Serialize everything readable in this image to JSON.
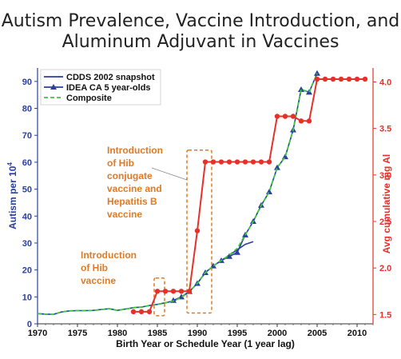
{
  "chart_data": {
    "type": "line",
    "title_line1": "Autism Prevalence, Vaccine Introduction, and",
    "title_line2": "Aluminum Adjuvant in Vaccines",
    "xlabel": "Birth Year or Schedule Year (1 year lag)",
    "ylabel_left": "Autism per 10",
    "ylabel_left_sup": "4",
    "ylabel_right": "Avg cumulative mg Al",
    "xlim": [
      1970,
      2012
    ],
    "ylim_left": [
      0,
      95
    ],
    "ylim_right": [
      1.4,
      4.15
    ],
    "xticks": [
      "1970",
      "1975",
      "1980",
      "1985",
      "1990",
      "1995",
      "2000",
      "2005",
      "2010"
    ],
    "yticks_left": [
      "0",
      "10",
      "20",
      "30",
      "40",
      "50",
      "60",
      "70",
      "80",
      "90"
    ],
    "yticks_right": [
      "1.5",
      "2.0",
      "2.5",
      "3.0",
      "3.5",
      "4.0"
    ],
    "legend_placement": "top-left",
    "series": [
      {
        "name": "CDDS 2002 snapshot",
        "color": "#2a3f9f",
        "axis": "left",
        "x": [
          1970,
          1971,
          1972,
          1973,
          1974,
          1975,
          1976,
          1977,
          1978,
          1979,
          1980,
          1981,
          1982,
          1983,
          1984,
          1985,
          1986,
          1987,
          1988,
          1989,
          1990,
          1991,
          1992,
          1993,
          1994,
          1995,
          1996,
          1997
        ],
        "values": [
          3.8,
          3.6,
          3.5,
          4.4,
          4.8,
          4.9,
          4.9,
          5.0,
          5.3,
          5.6,
          5.0,
          5.5,
          6.0,
          6.2,
          6.8,
          7.2,
          7.8,
          8.5,
          9.8,
          12.0,
          15.0,
          19.0,
          21.5,
          23.5,
          25.5,
          27.5,
          29.5,
          30.5
        ]
      },
      {
        "name": "IDEA CA 5 year-olds",
        "color": "#2a3f9f",
        "axis": "left",
        "x": [
          1987,
          1988,
          1989,
          1990,
          1991,
          1992,
          1993,
          1994,
          1995,
          1996,
          1997,
          1998,
          1999,
          2000,
          2001,
          2002,
          2003,
          2004,
          2005
        ],
        "values": [
          8.7,
          10.0,
          12.0,
          15.0,
          19.0,
          21.5,
          23.5,
          25.0,
          26.5,
          33.0,
          38.0,
          44.0,
          49.0,
          58.0,
          62.0,
          72.0,
          87.0,
          86.0,
          93.0
        ]
      },
      {
        "name": "Composite",
        "color": "#3cc83c",
        "axis": "left",
        "x": [
          1970,
          1971,
          1972,
          1973,
          1974,
          1975,
          1976,
          1977,
          1978,
          1979,
          1980,
          1981,
          1982,
          1983,
          1984,
          1985,
          1986,
          1987,
          1988,
          1989,
          1990,
          1991,
          1992,
          1993,
          1994,
          1995,
          1996,
          1997,
          1998,
          1999,
          2000,
          2001,
          2002,
          2003,
          2004,
          2005
        ],
        "values": [
          3.8,
          3.6,
          3.5,
          4.4,
          4.8,
          4.9,
          4.9,
          5.0,
          5.3,
          5.6,
          5.0,
          5.5,
          6.0,
          6.2,
          6.8,
          7.2,
          7.8,
          8.5,
          9.8,
          12.0,
          15.0,
          19.0,
          21.5,
          23.5,
          25.5,
          28.0,
          33.0,
          38.0,
          44.0,
          49.0,
          58.0,
          62.0,
          72.0,
          87.0,
          86.0,
          93.0
        ]
      },
      {
        "name": "Avg cumulative mg Al",
        "color": "#e8302a",
        "axis": "right",
        "x": [
          1982,
          1983,
          1984,
          1985,
          1986,
          1987,
          1988,
          1989,
          1990,
          1991,
          1992,
          1993,
          1994,
          1995,
          1996,
          1997,
          1998,
          1999,
          2000,
          2001,
          2002,
          2003,
          2004,
          2005,
          2006,
          2007,
          2008,
          2009,
          2010,
          2011
        ],
        "values": [
          1.53,
          1.53,
          1.53,
          1.75,
          1.75,
          1.75,
          1.75,
          1.75,
          2.4,
          3.14,
          3.14,
          3.14,
          3.14,
          3.14,
          3.14,
          3.14,
          3.14,
          3.14,
          3.63,
          3.63,
          3.63,
          3.58,
          3.58,
          4.03,
          4.03,
          4.03,
          4.03,
          4.03,
          4.03,
          4.03
        ]
      }
    ],
    "annotations": [
      {
        "lines": [
          "Introduction",
          "of Hib",
          "vaccine"
        ]
      },
      {
        "lines": [
          "Introduction",
          "of Hib",
          "conjugate",
          "vaccine and",
          "Hepatitis B",
          "vaccine"
        ]
      }
    ]
  }
}
